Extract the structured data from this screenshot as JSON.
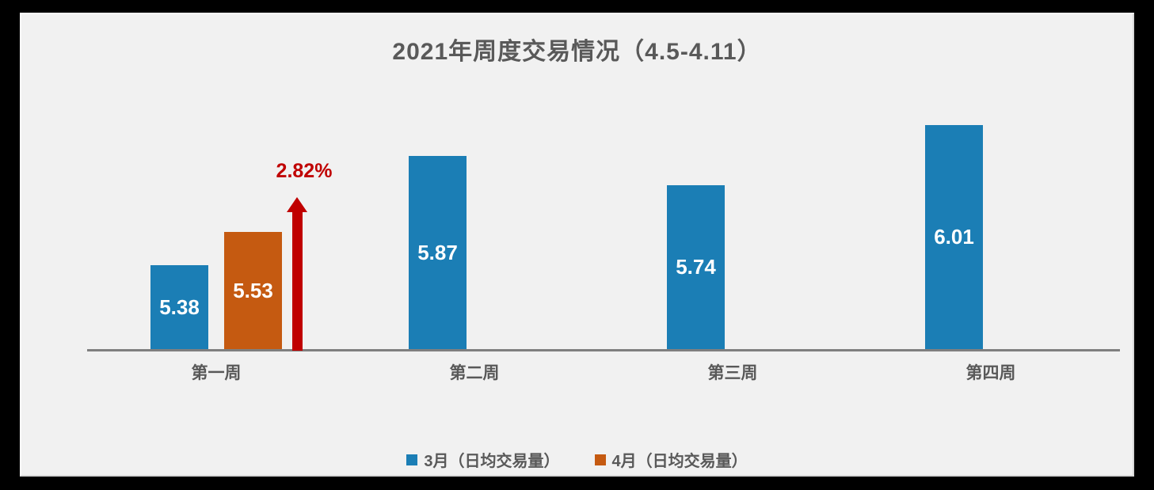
{
  "page": {
    "background_color": "#000000",
    "panel_background_color": "#F1F1F1"
  },
  "chart_data": {
    "type": "bar",
    "title": "2021年周度交易情况（4.5-4.11）",
    "title_color": "#595959",
    "categories": [
      "第一周",
      "第二周",
      "第三周",
      "第四周"
    ],
    "series": [
      {
        "name": "3月（日均交易量）",
        "color": "#1B7EB5",
        "values": [
          5.38,
          5.87,
          5.74,
          6.01
        ],
        "data_labels": [
          "5.38",
          "5.87",
          "5.74",
          "6.01"
        ]
      },
      {
        "name": "4月（日均交易量）",
        "color": "#C55A11",
        "values": [
          5.53,
          null,
          null,
          null
        ],
        "data_labels": [
          "5.53",
          null,
          null,
          null
        ]
      }
    ],
    "ylim": [
      5.0,
      6.2
    ],
    "xlabel": "",
    "ylabel": "",
    "grid": false,
    "y_axis_visible": false,
    "axis_line_color": "#7F7F7F",
    "legend_position": "bottom",
    "annotation": {
      "text": "2.82%",
      "color": "#C00000",
      "shape": "up-arrow",
      "category": "第一周"
    }
  }
}
